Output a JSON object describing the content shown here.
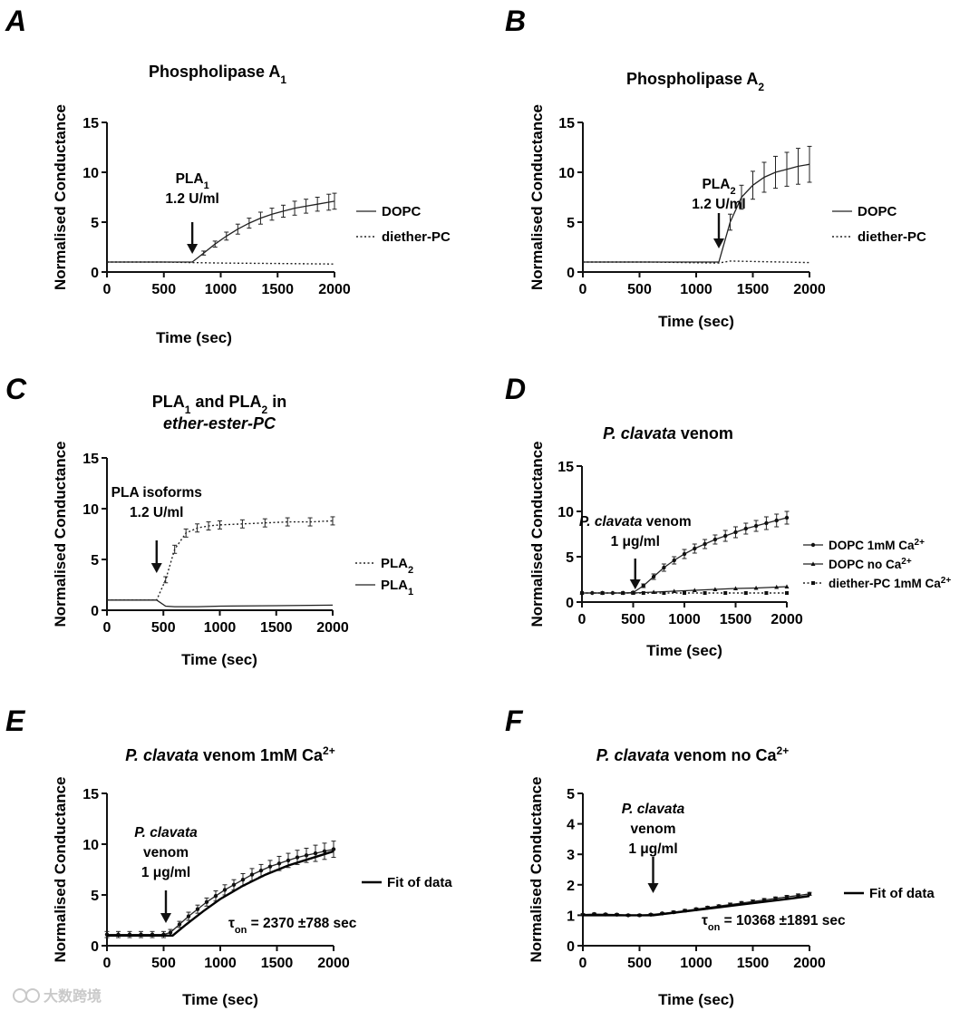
{
  "chart_data": [
    {
      "id": "A",
      "type": "line",
      "panel_label": "A",
      "title": "Phospholipase A",
      "title_sub": "1",
      "ylabel": "Normalised Conductance",
      "xlabel": "Time (sec)",
      "xlim": [
        0,
        2000
      ],
      "ylim": [
        0,
        15
      ],
      "xticks": [
        0,
        500,
        1000,
        1500,
        2000
      ],
      "yticks": [
        0,
        5,
        10,
        15
      ],
      "annotation": {
        "lines": [
          {
            "t": "PLA",
            "sub": "1"
          },
          {
            "t": "1.2 U/ml"
          }
        ],
        "x": 750
      },
      "series": [
        {
          "name": "DOPC",
          "style": "solid",
          "marker": "none",
          "x": [
            0,
            250,
            500,
            750,
            850,
            950,
            1050,
            1150,
            1250,
            1350,
            1450,
            1550,
            1650,
            1750,
            1850,
            1950,
            2000
          ],
          "y": [
            1.0,
            1.0,
            1.0,
            1.0,
            1.9,
            2.8,
            3.6,
            4.3,
            4.9,
            5.4,
            5.8,
            6.1,
            6.4,
            6.6,
            6.8,
            7.0,
            7.1
          ],
          "err": [
            0,
            0,
            0,
            0,
            0.2,
            0.3,
            0.4,
            0.5,
            0.5,
            0.6,
            0.6,
            0.6,
            0.7,
            0.7,
            0.7,
            0.8,
            0.8
          ]
        },
        {
          "name": "diether-PC",
          "style": "dotted",
          "marker": "none",
          "x": [
            0,
            500,
            750,
            1000,
            1500,
            2000
          ],
          "y": [
            1.0,
            1.0,
            0.95,
            0.9,
            0.85,
            0.8
          ],
          "err": [
            0,
            0,
            0,
            0,
            0,
            0
          ]
        }
      ]
    },
    {
      "id": "B",
      "type": "line",
      "panel_label": "B",
      "title": "Phospholipase A",
      "title_sub": "2",
      "ylabel": "Normalised Conductance",
      "xlabel": "Time (sec)",
      "xlim": [
        0,
        2000
      ],
      "ylim": [
        0,
        15
      ],
      "xticks": [
        0,
        500,
        1000,
        1500,
        2000
      ],
      "yticks": [
        0,
        5,
        10,
        15
      ],
      "annotation": {
        "lines": [
          {
            "t": "PLA",
            "sub": "2"
          },
          {
            "t": "1.2 U/ml"
          }
        ],
        "x": 1200
      },
      "series": [
        {
          "name": "DOPC",
          "style": "solid",
          "marker": "none",
          "x": [
            0,
            400,
            800,
            1200,
            1300,
            1400,
            1500,
            1600,
            1700,
            1800,
            1900,
            2000
          ],
          "y": [
            1.0,
            1.0,
            1.0,
            1.0,
            5.0,
            7.5,
            8.7,
            9.5,
            10.0,
            10.3,
            10.6,
            10.8
          ],
          "err": [
            0,
            0,
            0,
            0,
            0.8,
            1.2,
            1.4,
            1.5,
            1.6,
            1.7,
            1.8,
            1.8
          ]
        },
        {
          "name": "diether-PC",
          "style": "dotted",
          "marker": "none",
          "x": [
            0,
            600,
            1200,
            1300,
            2000
          ],
          "y": [
            1.0,
            1.0,
            0.9,
            1.1,
            0.95
          ],
          "err": [
            0,
            0,
            0,
            0,
            0
          ]
        }
      ]
    },
    {
      "id": "C",
      "type": "line",
      "panel_label": "C",
      "title": "PLA",
      "title_sub": "1",
      "title_rest": " and PLA",
      "title_sub2": "2",
      "title_tail": " in",
      "title_line2": "ether-ester-PC",
      "ylabel": "Normalised Conductance",
      "xlabel": "Time (sec)",
      "xlim": [
        0,
        2000
      ],
      "ylim": [
        0,
        15
      ],
      "xticks": [
        0,
        500,
        1000,
        1500,
        2000
      ],
      "yticks": [
        0,
        5,
        10,
        15
      ],
      "annotation": {
        "lines": [
          {
            "t": "PLA isoforms"
          },
          {
            "t": "1.2 U/ml"
          }
        ],
        "x": 440
      },
      "series": [
        {
          "name": "PLA",
          "name_sub": "2",
          "style": "dotted",
          "marker": "none",
          "x": [
            0,
            200,
            440,
            520,
            600,
            700,
            800,
            900,
            1000,
            1200,
            1400,
            1600,
            1800,
            2000
          ],
          "y": [
            1.0,
            1.0,
            1.0,
            3.0,
            6.0,
            7.6,
            8.1,
            8.3,
            8.4,
            8.5,
            8.6,
            8.7,
            8.7,
            8.8
          ],
          "err": [
            0,
            0,
            0,
            0.3,
            0.4,
            0.4,
            0.4,
            0.4,
            0.4,
            0.4,
            0.4,
            0.4,
            0.4,
            0.4
          ]
        },
        {
          "name": "PLA",
          "name_sub": "1",
          "style": "solid",
          "marker": "none",
          "x": [
            0,
            200,
            440,
            520,
            600,
            800,
            1000,
            1500,
            2000
          ],
          "y": [
            1.0,
            1.0,
            1.0,
            0.4,
            0.35,
            0.35,
            0.4,
            0.45,
            0.5
          ],
          "err": [
            0,
            0,
            0,
            0,
            0,
            0,
            0,
            0,
            0
          ]
        }
      ]
    },
    {
      "id": "D",
      "type": "line",
      "panel_label": "D",
      "title_italic": "P. clavata",
      "title_rest": " venom",
      "ylabel": "Normalised Conductance",
      "xlabel": "Time (sec)",
      "xlim": [
        0,
        2000
      ],
      "ylim": [
        0,
        15
      ],
      "xticks": [
        0,
        500,
        1000,
        1500,
        2000
      ],
      "yticks": [
        0,
        5,
        10,
        15
      ],
      "annotation": {
        "lines": [
          {
            "i": "P. clavata",
            "t": " venom"
          },
          {
            "t": "1 μg/ml"
          }
        ],
        "x": 520
      },
      "series": [
        {
          "name": "DOPC 1mM Ca",
          "name_sup": "2+",
          "style": "solid",
          "marker": "circle",
          "x": [
            0,
            100,
            200,
            300,
            400,
            500,
            600,
            700,
            800,
            900,
            1000,
            1100,
            1200,
            1300,
            1400,
            1500,
            1600,
            1700,
            1800,
            1900,
            2000
          ],
          "y": [
            1.0,
            1.0,
            1.0,
            1.0,
            1.0,
            1.05,
            1.8,
            2.8,
            3.8,
            4.6,
            5.3,
            5.9,
            6.4,
            6.9,
            7.3,
            7.7,
            8.1,
            8.4,
            8.7,
            9.0,
            9.3
          ],
          "err": [
            0,
            0,
            0,
            0,
            0,
            0.1,
            0.2,
            0.3,
            0.4,
            0.4,
            0.5,
            0.5,
            0.5,
            0.5,
            0.6,
            0.6,
            0.6,
            0.6,
            0.7,
            0.7,
            0.7
          ]
        },
        {
          "name": "DOPC no Ca",
          "name_sup": "2+",
          "style": "solid",
          "marker": "triangle",
          "x": [
            0,
            200,
            400,
            500,
            700,
            900,
            1100,
            1300,
            1500,
            1700,
            1900,
            2000
          ],
          "y": [
            1.0,
            1.0,
            1.0,
            1.0,
            1.1,
            1.2,
            1.3,
            1.4,
            1.5,
            1.55,
            1.65,
            1.7
          ],
          "err": [
            0,
            0,
            0,
            0,
            0,
            0,
            0,
            0,
            0,
            0,
            0,
            0
          ]
        },
        {
          "name": "diether-PC 1mM Ca",
          "name_sup": "2+",
          "style": "dotted",
          "marker": "square",
          "x": [
            0,
            200,
            400,
            600,
            800,
            1000,
            1200,
            1400,
            1600,
            1800,
            2000
          ],
          "y": [
            1.0,
            1.0,
            1.0,
            1.0,
            1.0,
            1.0,
            1.0,
            1.0,
            1.0,
            1.0,
            1.0
          ],
          "err": [
            0,
            0,
            0,
            0,
            0,
            0,
            0,
            0,
            0,
            0,
            0
          ]
        }
      ]
    },
    {
      "id": "E",
      "type": "line",
      "panel_label": "E",
      "title_italic": "P. clavata",
      "title_rest": " venom 1mM Ca",
      "title_sup": "2+",
      "ylabel": "Normalised Conductance",
      "xlabel": "Time (sec)",
      "xlim": [
        0,
        2000
      ],
      "ylim": [
        0,
        15
      ],
      "xticks": [
        0,
        500,
        1000,
        1500,
        2000
      ],
      "yticks": [
        0,
        5,
        10,
        15
      ],
      "annotation": {
        "lines": [
          {
            "i": "P. clavata"
          },
          {
            "t": "venom"
          },
          {
            "t": "1 μg/ml"
          }
        ],
        "x": 520
      },
      "tau": {
        "prefix": "τ",
        "sub": "on",
        "text": " = 2370 ±788 sec"
      },
      "series": [
        {
          "name": "data",
          "legend": false,
          "style": "solid",
          "marker": "circle",
          "x": [
            0,
            100,
            200,
            300,
            400,
            500,
            560,
            640,
            720,
            800,
            880,
            960,
            1040,
            1120,
            1200,
            1280,
            1360,
            1440,
            1520,
            1600,
            1680,
            1760,
            1840,
            1920,
            2000
          ],
          "y": [
            1.1,
            1.1,
            1.1,
            1.1,
            1.1,
            1.1,
            1.3,
            2.1,
            2.9,
            3.6,
            4.3,
            4.9,
            5.5,
            6.0,
            6.5,
            7.0,
            7.4,
            7.8,
            8.1,
            8.4,
            8.7,
            8.9,
            9.1,
            9.3,
            9.5
          ],
          "err": [
            0.3,
            0.3,
            0.3,
            0.3,
            0.3,
            0.3,
            0.3,
            0.3,
            0.4,
            0.4,
            0.4,
            0.5,
            0.5,
            0.5,
            0.6,
            0.6,
            0.6,
            0.6,
            0.7,
            0.7,
            0.7,
            0.7,
            0.8,
            0.8,
            0.8
          ]
        },
        {
          "name": "Fit of data",
          "style": "fit",
          "marker": "none",
          "x": [
            0,
            580,
            700,
            850,
            1000,
            1200,
            1400,
            1600,
            1800,
            2000
          ],
          "y": [
            1.0,
            1.0,
            2.1,
            3.4,
            4.6,
            5.9,
            7.0,
            7.9,
            8.6,
            9.3
          ],
          "err": [
            0,
            0,
            0,
            0,
            0,
            0,
            0,
            0,
            0,
            0
          ]
        }
      ]
    },
    {
      "id": "F",
      "type": "line",
      "panel_label": "F",
      "title_italic": "P. clavata",
      "title_rest": " venom no Ca",
      "title_sup": "2+",
      "ylabel": "Normalised Conductance",
      "xlabel": "Time (sec)",
      "xlim": [
        0,
        2000
      ],
      "ylim": [
        0,
        5
      ],
      "xticks": [
        0,
        500,
        1000,
        1500,
        2000
      ],
      "yticks": [
        0,
        1,
        2,
        3,
        4,
        5
      ],
      "annotation": {
        "lines": [
          {
            "i": "P. clavata"
          },
          {
            "t": "venom"
          },
          {
            "t": "1 μg/ml"
          }
        ],
        "x": 620
      },
      "tau": {
        "prefix": "τ",
        "sub": "on",
        "text": " = 10368 ±1891 sec"
      },
      "series": [
        {
          "name": "data",
          "legend": false,
          "style": "solid",
          "marker": "circle",
          "x": [
            0,
            100,
            200,
            300,
            400,
            500,
            600,
            700,
            800,
            900,
            1000,
            1100,
            1200,
            1300,
            1400,
            1500,
            1600,
            1700,
            1800,
            1900,
            2000
          ],
          "y": [
            1.02,
            1.04,
            1.03,
            1.02,
            1.0,
            1.0,
            1.02,
            1.06,
            1.1,
            1.15,
            1.2,
            1.25,
            1.3,
            1.35,
            1.4,
            1.45,
            1.5,
            1.55,
            1.6,
            1.65,
            1.7
          ],
          "err": [
            0.03,
            0.03,
            0.03,
            0.03,
            0.03,
            0.03,
            0.03,
            0.03,
            0.04,
            0.04,
            0.04,
            0.04,
            0.04,
            0.05,
            0.05,
            0.05,
            0.05,
            0.05,
            0.05,
            0.05,
            0.05
          ]
        },
        {
          "name": "Fit of data",
          "style": "fit",
          "marker": "none",
          "x": [
            0,
            620,
            800,
            1000,
            1200,
            1400,
            1600,
            1800,
            2000
          ],
          "y": [
            1.0,
            1.0,
            1.08,
            1.17,
            1.26,
            1.35,
            1.44,
            1.53,
            1.63
          ],
          "err": [
            0,
            0,
            0,
            0,
            0,
            0,
            0,
            0,
            0
          ]
        }
      ]
    }
  ],
  "watermark": "大数跨境"
}
